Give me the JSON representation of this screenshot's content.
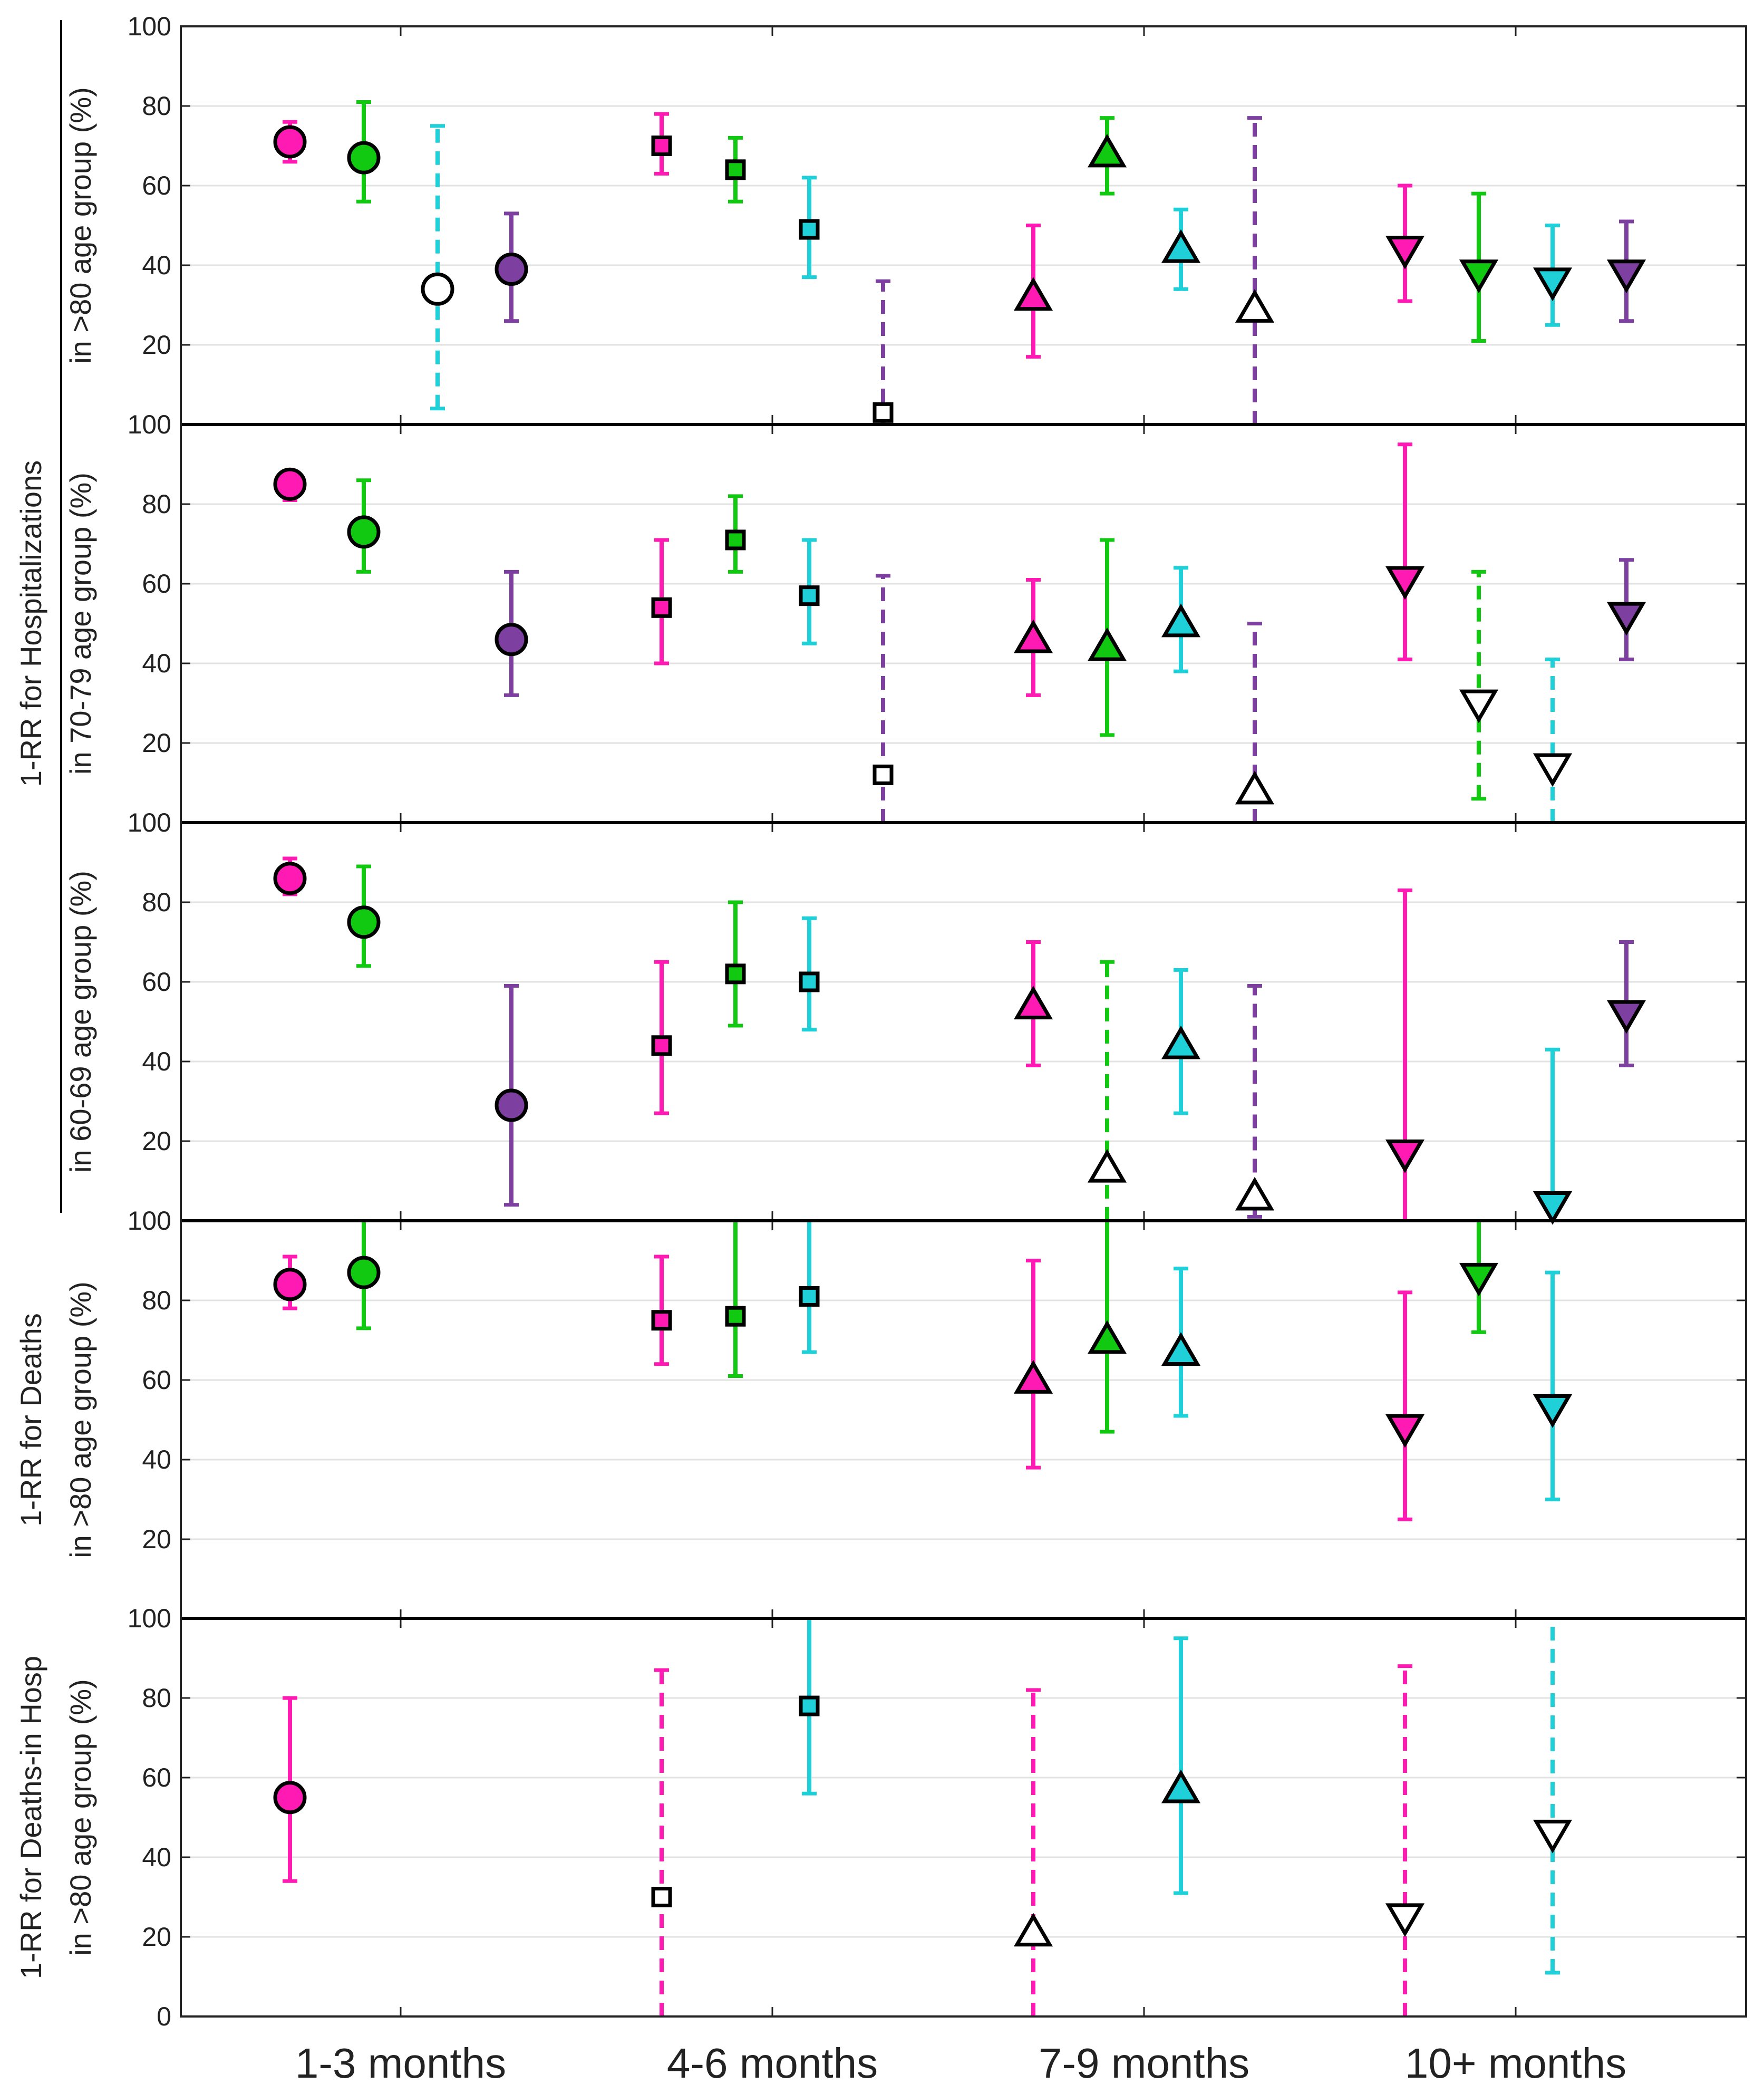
{
  "chart_data": {
    "type": "scatter-errorbar",
    "categories": [
      "1-3 months",
      "4-6 months",
      "7-9 months",
      "10+ months"
    ],
    "ylim": [
      0,
      100
    ],
    "yticks": [
      0,
      20,
      40,
      60,
      80,
      100
    ],
    "grid": true,
    "colors": [
      "#ff1ab3",
      "#12c912",
      "#1fd0d8",
      "#7d3fa0"
    ],
    "marker_by_category": [
      "circle",
      "square",
      "triangle-up",
      "triangle-down"
    ],
    "group_label_hosp": "1-RR for Hospitalizations",
    "panels": [
      {
        "ylabel_lines": [
          "in >80 age group (%)"
        ],
        "points": [
          {
            "cat": 0,
            "s": 0,
            "v": 71,
            "lo": 66,
            "hi": 76,
            "filled": true,
            "dashed": false
          },
          {
            "cat": 0,
            "s": 1,
            "v": 67,
            "lo": 56,
            "hi": 81,
            "filled": true,
            "dashed": false
          },
          {
            "cat": 0,
            "s": 2,
            "v": 34,
            "lo": 4,
            "hi": 75,
            "filled": false,
            "dashed": true
          },
          {
            "cat": 0,
            "s": 3,
            "v": 39,
            "lo": 26,
            "hi": 53,
            "filled": true,
            "dashed": false
          },
          {
            "cat": 1,
            "s": 0,
            "v": 70,
            "lo": 63,
            "hi": 78,
            "filled": true,
            "dashed": false
          },
          {
            "cat": 1,
            "s": 1,
            "v": 64,
            "lo": 56,
            "hi": 72,
            "filled": true,
            "dashed": false
          },
          {
            "cat": 1,
            "s": 2,
            "v": 49,
            "lo": 37,
            "hi": 62,
            "filled": true,
            "dashed": false
          },
          {
            "cat": 1,
            "s": 3,
            "v": 3,
            "lo": 0,
            "hi": 36,
            "filled": false,
            "dashed": true
          },
          {
            "cat": 2,
            "s": 0,
            "v": 32,
            "lo": 17,
            "hi": 50,
            "filled": true,
            "dashed": false
          },
          {
            "cat": 2,
            "s": 1,
            "v": 68,
            "lo": 58,
            "hi": 77,
            "filled": true,
            "dashed": false
          },
          {
            "cat": 2,
            "s": 2,
            "v": 44,
            "lo": 34,
            "hi": 54,
            "filled": true,
            "dashed": false
          },
          {
            "cat": 2,
            "s": 3,
            "v": 29,
            "lo": 0,
            "hi": 77,
            "filled": false,
            "dashed": true
          },
          {
            "cat": 3,
            "s": 0,
            "v": 44,
            "lo": 31,
            "hi": 60,
            "filled": true,
            "dashed": false
          },
          {
            "cat": 3,
            "s": 1,
            "v": 38,
            "lo": 21,
            "hi": 58,
            "filled": true,
            "dashed": false
          },
          {
            "cat": 3,
            "s": 2,
            "v": 36,
            "lo": 25,
            "hi": 50,
            "filled": true,
            "dashed": false
          },
          {
            "cat": 3,
            "s": 3,
            "v": 38,
            "lo": 26,
            "hi": 51,
            "filled": true,
            "dashed": false
          }
        ]
      },
      {
        "ylabel_lines": [
          "in 70-79 age group (%)"
        ],
        "points": [
          {
            "cat": 0,
            "s": 0,
            "v": 85,
            "lo": 81,
            "hi": 88,
            "filled": true,
            "dashed": false
          },
          {
            "cat": 0,
            "s": 1,
            "v": 73,
            "lo": 63,
            "hi": 86,
            "filled": true,
            "dashed": false
          },
          {
            "cat": 0,
            "s": 3,
            "v": 46,
            "lo": 32,
            "hi": 63,
            "filled": true,
            "dashed": false
          },
          {
            "cat": 1,
            "s": 0,
            "v": 54,
            "lo": 40,
            "hi": 71,
            "filled": true,
            "dashed": false
          },
          {
            "cat": 1,
            "s": 1,
            "v": 71,
            "lo": 63,
            "hi": 82,
            "filled": true,
            "dashed": false
          },
          {
            "cat": 1,
            "s": 2,
            "v": 57,
            "lo": 45,
            "hi": 71,
            "filled": true,
            "dashed": false
          },
          {
            "cat": 1,
            "s": 3,
            "v": 12,
            "lo": 0,
            "hi": 62,
            "filled": false,
            "dashed": true
          },
          {
            "cat": 2,
            "s": 0,
            "v": 46,
            "lo": 32,
            "hi": 61,
            "filled": true,
            "dashed": false
          },
          {
            "cat": 2,
            "s": 1,
            "v": 44,
            "lo": 22,
            "hi": 71,
            "filled": true,
            "dashed": false
          },
          {
            "cat": 2,
            "s": 2,
            "v": 50,
            "lo": 38,
            "hi": 64,
            "filled": true,
            "dashed": false
          },
          {
            "cat": 2,
            "s": 3,
            "v": 8,
            "lo": 0,
            "hi": 50,
            "filled": false,
            "dashed": true
          },
          {
            "cat": 3,
            "s": 0,
            "v": 61,
            "lo": 41,
            "hi": 95,
            "filled": true,
            "dashed": false
          },
          {
            "cat": 3,
            "s": 1,
            "v": 30,
            "lo": 6,
            "hi": 63,
            "filled": false,
            "dashed": true
          },
          {
            "cat": 3,
            "s": 2,
            "v": 14,
            "lo": 0,
            "hi": 41,
            "filled": false,
            "dashed": true
          },
          {
            "cat": 3,
            "s": 3,
            "v": 52,
            "lo": 41,
            "hi": 66,
            "filled": true,
            "dashed": false
          }
        ]
      },
      {
        "ylabel_lines": [
          "in 60-69 age group (%)"
        ],
        "points": [
          {
            "cat": 0,
            "s": 0,
            "v": 86,
            "lo": 82,
            "hi": 91,
            "filled": true,
            "dashed": false
          },
          {
            "cat": 0,
            "s": 1,
            "v": 75,
            "lo": 64,
            "hi": 89,
            "filled": true,
            "dashed": false
          },
          {
            "cat": 0,
            "s": 3,
            "v": 29,
            "lo": 4,
            "hi": 59,
            "filled": true,
            "dashed": false
          },
          {
            "cat": 1,
            "s": 0,
            "v": 44,
            "lo": 27,
            "hi": 65,
            "filled": true,
            "dashed": false
          },
          {
            "cat": 1,
            "s": 1,
            "v": 62,
            "lo": 49,
            "hi": 80,
            "filled": true,
            "dashed": false
          },
          {
            "cat": 1,
            "s": 2,
            "v": 60,
            "lo": 48,
            "hi": 76,
            "filled": true,
            "dashed": false
          },
          {
            "cat": 2,
            "s": 0,
            "v": 54,
            "lo": 39,
            "hi": 70,
            "filled": true,
            "dashed": false
          },
          {
            "cat": 2,
            "s": 1,
            "v": 13,
            "lo": 0,
            "hi": 65,
            "filled": false,
            "dashed": true
          },
          {
            "cat": 2,
            "s": 2,
            "v": 44,
            "lo": 27,
            "hi": 63,
            "filled": true,
            "dashed": false
          },
          {
            "cat": 2,
            "s": 3,
            "v": 6,
            "lo": 1,
            "hi": 59,
            "filled": false,
            "dashed": true
          },
          {
            "cat": 3,
            "s": 0,
            "v": 17,
            "lo": 0,
            "hi": 83,
            "filled": true,
            "dashed": false
          },
          {
            "cat": 3,
            "s": 2,
            "v": 4,
            "lo": 0,
            "hi": 43,
            "filled": true,
            "dashed": false
          },
          {
            "cat": 3,
            "s": 3,
            "v": 52,
            "lo": 39,
            "hi": 70,
            "filled": true,
            "dashed": false
          }
        ]
      },
      {
        "ylabel_lines": [
          "1-RR for Deaths",
          "in >80 age group (%)"
        ],
        "points": [
          {
            "cat": 0,
            "s": 0,
            "v": 84,
            "lo": 78,
            "hi": 91,
            "filled": true,
            "dashed": false
          },
          {
            "cat": 0,
            "s": 1,
            "v": 87,
            "lo": 73,
            "hi": 100,
            "filled": true,
            "dashed": false
          },
          {
            "cat": 1,
            "s": 0,
            "v": 75,
            "lo": 64,
            "hi": 91,
            "filled": true,
            "dashed": false
          },
          {
            "cat": 1,
            "s": 1,
            "v": 76,
            "lo": 61,
            "hi": 100,
            "filled": true,
            "dashed": false
          },
          {
            "cat": 1,
            "s": 2,
            "v": 81,
            "lo": 67,
            "hi": 100,
            "filled": true,
            "dashed": false
          },
          {
            "cat": 2,
            "s": 0,
            "v": 60,
            "lo": 38,
            "hi": 90,
            "filled": true,
            "dashed": false
          },
          {
            "cat": 2,
            "s": 1,
            "v": 70,
            "lo": 47,
            "hi": 100,
            "filled": true,
            "dashed": false
          },
          {
            "cat": 2,
            "s": 2,
            "v": 67,
            "lo": 51,
            "hi": 88,
            "filled": true,
            "dashed": false
          },
          {
            "cat": 3,
            "s": 0,
            "v": 48,
            "lo": 25,
            "hi": 82,
            "filled": true,
            "dashed": false
          },
          {
            "cat": 3,
            "s": 1,
            "v": 86,
            "lo": 72,
            "hi": 100,
            "filled": true,
            "dashed": false
          },
          {
            "cat": 3,
            "s": 2,
            "v": 53,
            "lo": 30,
            "hi": 87,
            "filled": true,
            "dashed": false
          }
        ]
      },
      {
        "ylabel_lines": [
          "1-RR for Deaths-in Hosp",
          "in >80 age group (%)"
        ],
        "points": [
          {
            "cat": 0,
            "s": 0,
            "v": 55,
            "lo": 34,
            "hi": 80,
            "filled": true,
            "dashed": false
          },
          {
            "cat": 1,
            "s": 0,
            "v": 30,
            "lo": 0,
            "hi": 87,
            "filled": false,
            "dashed": true
          },
          {
            "cat": 1,
            "s": 2,
            "v": 78,
            "lo": 56,
            "hi": 100,
            "filled": true,
            "dashed": false
          },
          {
            "cat": 2,
            "s": 0,
            "v": 21,
            "lo": 0,
            "hi": 82,
            "filled": false,
            "dashed": true
          },
          {
            "cat": 2,
            "s": 2,
            "v": 57,
            "lo": 31,
            "hi": 95,
            "filled": true,
            "dashed": false
          },
          {
            "cat": 3,
            "s": 0,
            "v": 25,
            "lo": 0,
            "hi": 88,
            "filled": false,
            "dashed": true
          },
          {
            "cat": 3,
            "s": 2,
            "v": 46,
            "lo": 11,
            "hi": 100,
            "filled": false,
            "dashed": true
          }
        ]
      }
    ]
  }
}
